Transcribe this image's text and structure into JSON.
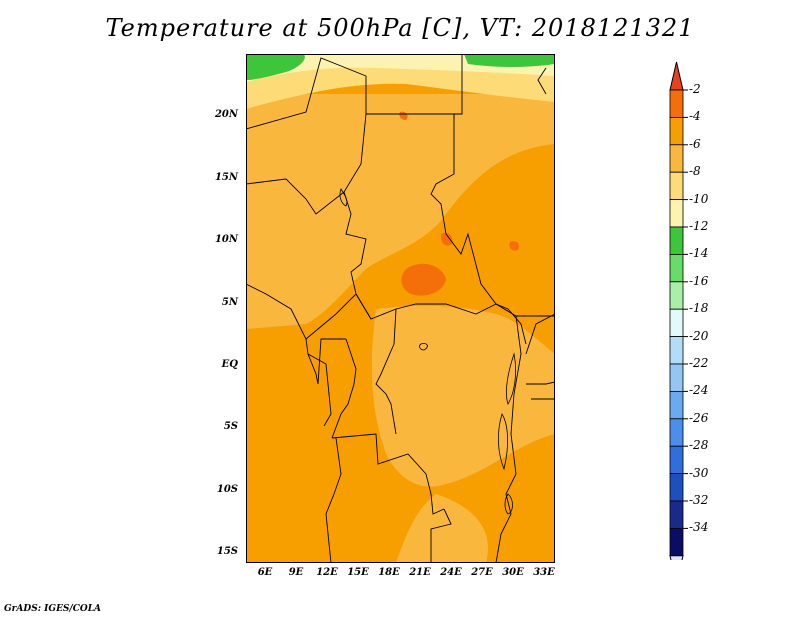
{
  "title": "Temperature at 500hPa [C], VT: 2018121321",
  "credit": "GrADS: IGES/COLA",
  "latitude_labels": [
    "20N",
    "15N",
    "10N",
    "5N",
    "EQ",
    "5S",
    "10S",
    "15S"
  ],
  "longitude_labels": [
    "6E",
    "9E",
    "12E",
    "15E",
    "18E",
    "21E",
    "24E",
    "27E",
    "30E",
    "33E"
  ],
  "colorbar": {
    "labels": [
      "-2",
      "-4",
      "-6",
      "-8",
      "-10",
      "-12",
      "-14",
      "-16",
      "-18",
      "-20",
      "-22",
      "-24",
      "-26",
      "-28",
      "-30",
      "-32",
      "-34"
    ],
    "colors": [
      "#e8421c",
      "#f46f0a",
      "#f79e00",
      "#fab73e",
      "#fddb77",
      "#fdf3b1",
      "#3ec63a",
      "#67dc68",
      "#a8f0a6",
      "#e2fafa",
      "#b3dcf6",
      "#93c6f3",
      "#6aabf0",
      "#4c8ee9",
      "#2f6fdc",
      "#1e4fbe",
      "#1a2a8a",
      "#0c0c64",
      "#e8e0fa"
    ]
  }
}
